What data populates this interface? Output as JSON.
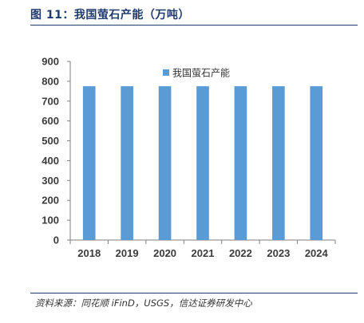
{
  "figure": {
    "title": "图 11：我国萤石产能（万吨）",
    "source": "资料来源：同花顺 iFinD，USGS，信达证券研发中心"
  },
  "chart_data": {
    "type": "bar",
    "categories": [
      "2018",
      "2019",
      "2020",
      "2021",
      "2022",
      "2023",
      "2024"
    ],
    "series": [
      {
        "name": "我国萤石产能",
        "values": [
          775,
          775,
          775,
          775,
          775,
          775,
          775
        ],
        "color": "#5b9bd5"
      }
    ],
    "yticks": [
      0,
      100,
      200,
      300,
      400,
      500,
      600,
      700,
      800,
      900
    ],
    "ylim": [
      0,
      900
    ],
    "grid": false,
    "legend_position": "top-center"
  }
}
